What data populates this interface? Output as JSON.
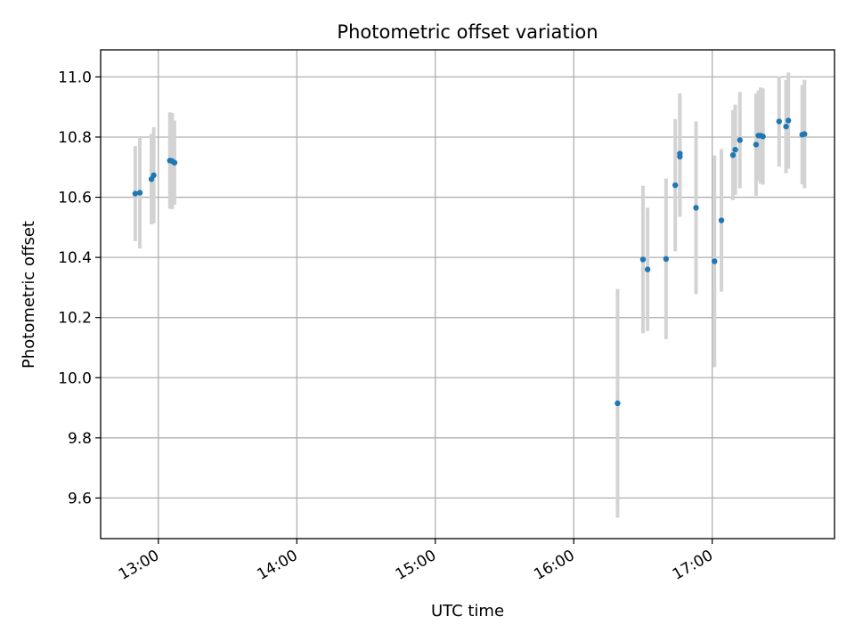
{
  "chart_data": {
    "type": "scatter",
    "title": "Photometric offset variation",
    "xlabel": "UTC time",
    "ylabel": "Photometric offset",
    "x_ticks": [
      "13:00",
      "14:00",
      "15:00",
      "16:00",
      "17:00"
    ],
    "y_ticks": [
      "9.6",
      "9.8",
      "10.0",
      "10.2",
      "10.4",
      "10.6",
      "10.8",
      "11.0"
    ],
    "xlim": [
      "12:35",
      "17:53"
    ],
    "ylim": [
      9.465,
      11.09
    ],
    "grid": true,
    "point_color": "#1f77b4",
    "errorbar_color": "#d3d3d3",
    "points": [
      {
        "x": "12:50",
        "y": 10.612,
        "err": 0.158
      },
      {
        "x": "12:52",
        "y": 10.615,
        "err": 0.185
      },
      {
        "x": "12:57",
        "y": 10.66,
        "err": 0.15
      },
      {
        "x": "12:58",
        "y": 10.673,
        "err": 0.16
      },
      {
        "x": "13:05",
        "y": 10.722,
        "err": 0.16
      },
      {
        "x": "13:06",
        "y": 10.72,
        "err": 0.16
      },
      {
        "x": "13:07",
        "y": 10.715,
        "err": 0.14
      },
      {
        "x": "16:19",
        "y": 9.915,
        "err": 0.38
      },
      {
        "x": "16:30",
        "y": 10.393,
        "err": 0.245
      },
      {
        "x": "16:32",
        "y": 10.36,
        "err": 0.205
      },
      {
        "x": "16:40",
        "y": 10.395,
        "err": 0.267
      },
      {
        "x": "16:44",
        "y": 10.64,
        "err": 0.22
      },
      {
        "x": "16:46",
        "y": 10.735,
        "err": 0.2
      },
      {
        "x": "16:46",
        "y": 10.745,
        "err": 0.2
      },
      {
        "x": "16:53",
        "y": 10.565,
        "err": 0.287
      },
      {
        "x": "17:01",
        "y": 10.387,
        "err": 0.352
      },
      {
        "x": "17:04",
        "y": 10.523,
        "err": 0.237
      },
      {
        "x": "17:09",
        "y": 10.74,
        "err": 0.15
      },
      {
        "x": "17:10",
        "y": 10.758,
        "err": 0.15
      },
      {
        "x": "17:12",
        "y": 10.79,
        "err": 0.16
      },
      {
        "x": "17:19",
        "y": 10.775,
        "err": 0.17
      },
      {
        "x": "17:20",
        "y": 10.805,
        "err": 0.15
      },
      {
        "x": "17:21",
        "y": 10.805,
        "err": 0.16
      },
      {
        "x": "17:22",
        "y": 10.802,
        "err": 0.16
      },
      {
        "x": "17:29",
        "y": 10.852,
        "err": 0.15
      },
      {
        "x": "17:32",
        "y": 10.835,
        "err": 0.155
      },
      {
        "x": "17:33",
        "y": 10.855,
        "err": 0.16
      },
      {
        "x": "17:39",
        "y": 10.808,
        "err": 0.165
      },
      {
        "x": "17:40",
        "y": 10.81,
        "err": 0.18
      }
    ]
  }
}
